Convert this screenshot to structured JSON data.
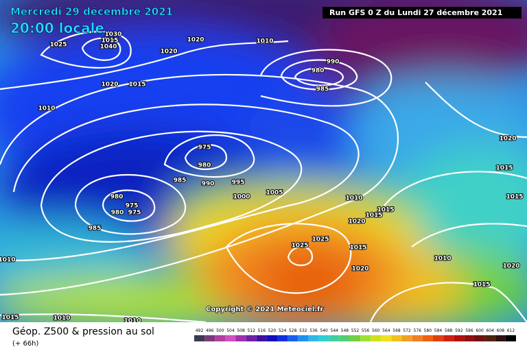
{
  "header": {
    "date": "Mercredi 29 décembre 2021",
    "time": "20:00 locale",
    "run": "Run GFS 0 Z du Lundi 27 décembre 2021"
  },
  "copyright": "Copyright © 2021 Meteociel.fr",
  "footer": {
    "title": "Géop. Z500 & pression au sol",
    "lead": "(+ 66h)"
  },
  "legend": {
    "ticks": [
      492,
      496,
      500,
      504,
      508,
      512,
      516,
      520,
      524,
      528,
      532,
      536,
      540,
      544,
      548,
      552,
      556,
      560,
      564,
      568,
      572,
      576,
      580,
      584,
      588,
      592,
      596,
      600,
      604,
      608,
      612
    ]
  },
  "isobar_labels": [
    1030,
    1015,
    1040,
    1025,
    1020,
    1020,
    1010,
    990,
    980,
    985,
    1020,
    1015,
    1010,
    975,
    980,
    985,
    990,
    995,
    1000,
    1005,
    1010,
    1015,
    1015,
    1020,
    980,
    975,
    980,
    975,
    985,
    1025,
    1025,
    1015,
    1020,
    1010,
    1015,
    1020,
    1015,
    1015,
    1020,
    1010,
    1015,
    1010,
    1010
  ]
}
